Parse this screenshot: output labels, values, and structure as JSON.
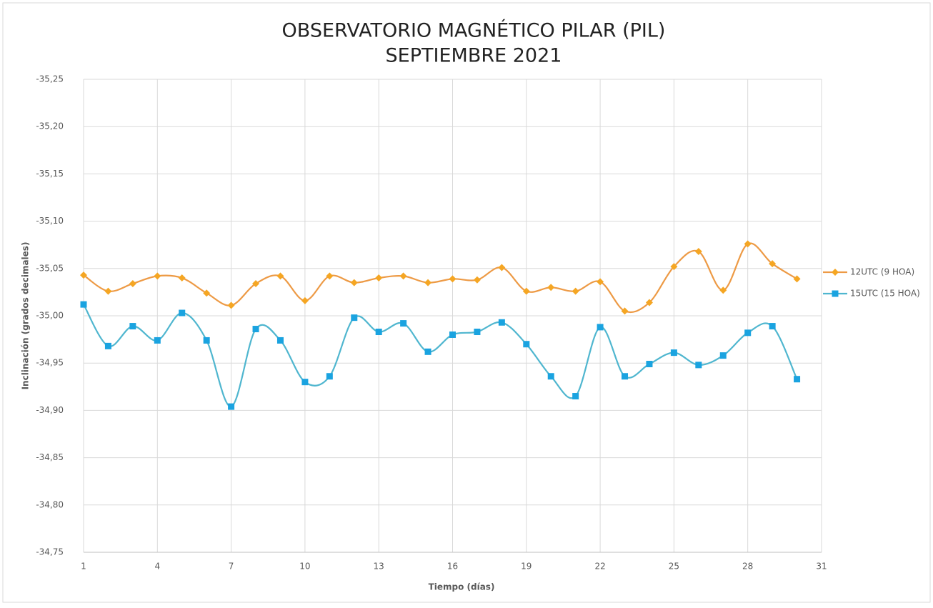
{
  "chart_data": {
    "type": "line",
    "title": "OBSERVATORIO MAGNÉTICO PILAR (PIL)",
    "subtitle": "SEPTIEMBRE 2021",
    "y_label": "Inclinación  (grados decimales)",
    "x_label": "Tiempo (días)",
    "x": [
      1,
      2,
      3,
      4,
      5,
      6,
      7,
      8,
      9,
      10,
      11,
      12,
      13,
      14,
      15,
      16,
      17,
      18,
      19,
      20,
      21,
      22,
      23,
      24,
      25,
      26,
      27,
      28,
      29,
      30
    ],
    "series": [
      {
        "name": "12UTC (9 HOA)",
        "color": "#f5a623",
        "line_color": "#ed9a45",
        "marker": "diamond",
        "values": [
          -35.043,
          -35.026,
          -35.034,
          -35.042,
          -35.04,
          -35.024,
          -35.011,
          -35.034,
          -35.042,
          -35.016,
          -35.042,
          -35.035,
          -35.04,
          -35.042,
          -35.035,
          -35.039,
          -35.038,
          -35.051,
          -35.026,
          -35.03,
          -35.026,
          -35.036,
          -35.005,
          -35.014,
          -35.052,
          -35.068,
          -35.027,
          -35.076,
          -35.055,
          -35.039
        ]
      },
      {
        "name": "15UTC (15 HOA)",
        "color": "#1aa3e0",
        "line_color": "#4fb6cf",
        "marker": "square",
        "values": [
          -35.012,
          -34.968,
          -34.989,
          -34.974,
          -35.003,
          -34.974,
          -34.904,
          -34.986,
          -34.974,
          -34.93,
          -34.936,
          -34.998,
          -34.983,
          -34.992,
          -34.962,
          -34.98,
          -34.983,
          -34.993,
          -34.97,
          -34.936,
          -34.915,
          -34.988,
          -34.936,
          -34.949,
          -34.961,
          -34.948,
          -34.958,
          -34.982,
          -34.989,
          -34.933
        ]
      }
    ],
    "xlim": [
      1,
      31
    ],
    "xticks": [
      1,
      4,
      7,
      10,
      13,
      16,
      19,
      22,
      25,
      28,
      31
    ],
    "ylim": [
      -35.25,
      -34.75
    ],
    "y_inverted": true,
    "yticks": [
      {
        "value": -35.25,
        "label": "-35,25"
      },
      {
        "value": -35.2,
        "label": "-35,20"
      },
      {
        "value": -35.15,
        "label": "-35,15"
      },
      {
        "value": -35.1,
        "label": "-35,10"
      },
      {
        "value": -35.05,
        "label": "-35,05"
      },
      {
        "value": -35.0,
        "label": "-35,00"
      },
      {
        "value": -34.95,
        "label": "-34,95"
      },
      {
        "value": -34.9,
        "label": "-34,90"
      },
      {
        "value": -34.85,
        "label": "-34,85"
      },
      {
        "value": -34.8,
        "label": "-34,80"
      },
      {
        "value": -34.75,
        "label": "-34,75"
      }
    ],
    "grid": true,
    "smooth": true,
    "legend": "right"
  }
}
